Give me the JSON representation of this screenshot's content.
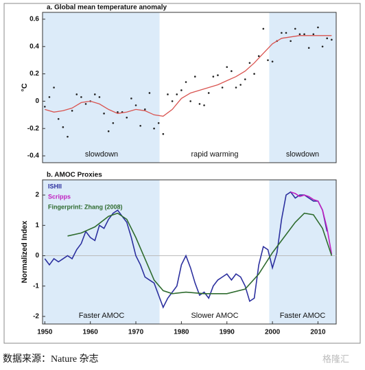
{
  "chart_data": [
    {
      "type": "line",
      "title": "a. Global mean temperature anomaly",
      "y_label": "°C",
      "xlim": [
        1949.5,
        2014
      ],
      "ylim": [
        -0.45,
        0.65
      ],
      "yticks": [
        -0.4,
        -0.2,
        0,
        0.2,
        0.4,
        0.6
      ],
      "shaded": [
        [
          1949.5,
          1975.2
        ],
        [
          1999.3,
          2014
        ]
      ],
      "shade_color": "#dcebf9",
      "annotations": [
        "slowdown",
        "rapid warming",
        "slowdown"
      ],
      "series": [
        {
          "color": "#222222",
          "markers": true,
          "x": [
            1950,
            1951,
            1952,
            1953,
            1954,
            1955,
            1956,
            1957,
            1958,
            1959,
            1960,
            1961,
            1962,
            1963,
            1964,
            1965,
            1966,
            1967,
            1968,
            1969,
            1970,
            1971,
            1972,
            1973,
            1974,
            1975,
            1976,
            1977,
            1978,
            1979,
            1980,
            1981,
            1982,
            1983,
            1984,
            1985,
            1986,
            1987,
            1988,
            1989,
            1990,
            1991,
            1992,
            1993,
            1994,
            1995,
            1996,
            1997,
            1998,
            1999,
            2000,
            2001,
            2002,
            2003,
            2004,
            2005,
            2006,
            2007,
            2008,
            2009,
            2010,
            2011,
            2012,
            2013
          ],
          "values": [
            -0.04,
            0.03,
            0.1,
            -0.13,
            -0.19,
            -0.26,
            -0.07,
            0.05,
            0.03,
            -0.02,
            0.0,
            0.05,
            0.03,
            -0.09,
            -0.22,
            -0.16,
            -0.08,
            -0.08,
            -0.12,
            0.02,
            -0.03,
            -0.18,
            -0.06,
            0.06,
            -0.2,
            -0.16,
            -0.24,
            0.05,
            0.0,
            0.05,
            0.08,
            0.14,
            0.0,
            0.18,
            -0.02,
            -0.03,
            0.06,
            0.18,
            0.19,
            0.1,
            0.25,
            0.22,
            0.1,
            0.12,
            0.16,
            0.28,
            0.2,
            0.33,
            0.53,
            0.3,
            0.29,
            0.44,
            0.5,
            0.5,
            0.44,
            0.53,
            0.49,
            0.49,
            0.39,
            0.49,
            0.54,
            0.4,
            0.46,
            0.45
          ]
        },
        {
          "color": "#d9534f",
          "markers": false,
          "x": [
            1950,
            1952,
            1954,
            1956,
            1958,
            1960,
            1962,
            1964,
            1966,
            1968,
            1970,
            1972,
            1974,
            1976,
            1978,
            1980,
            1982,
            1984,
            1986,
            1988,
            1990,
            1992,
            1994,
            1996,
            1998,
            2000,
            2002,
            2004,
            2006,
            2008,
            2010,
            2012,
            2013
          ],
          "values": [
            -0.06,
            -0.08,
            -0.07,
            -0.05,
            -0.01,
            0.0,
            -0.02,
            -0.06,
            -0.09,
            -0.08,
            -0.06,
            -0.07,
            -0.1,
            -0.11,
            -0.06,
            0.02,
            0.06,
            0.08,
            0.1,
            0.12,
            0.15,
            0.18,
            0.22,
            0.28,
            0.35,
            0.42,
            0.46,
            0.47,
            0.48,
            0.48,
            0.48,
            0.48,
            0.48
          ]
        }
      ]
    },
    {
      "type": "line",
      "title": "b. AMOC Proxies",
      "y_label": "Normalized Index",
      "xlim": [
        1949.5,
        2014
      ],
      "ylim": [
        -2.25,
        2.5
      ],
      "yticks": [
        -2,
        -1,
        0,
        1,
        2
      ],
      "xticks": [
        1950,
        1960,
        1970,
        1980,
        1990,
        2000,
        2010
      ],
      "zero_line": true,
      "shaded": [
        [
          1949.5,
          1975.2
        ],
        [
          1999.3,
          2014
        ]
      ],
      "shade_color": "#dcebf9",
      "annotations": [
        "Faster AMOC",
        "Slower AMOC",
        "Faster AMOC"
      ],
      "series": [
        {
          "name": "ISHII",
          "color": "#2b2f9e",
          "x": [
            1950,
            1951,
            1952,
            1953,
            1954,
            1955,
            1956,
            1957,
            1958,
            1959,
            1960,
            1961,
            1962,
            1963,
            1964,
            1965,
            1966,
            1967,
            1968,
            1969,
            1970,
            1971,
            1972,
            1973,
            1974,
            1975,
            1976,
            1977,
            1978,
            1979,
            1980,
            1981,
            1982,
            1983,
            1984,
            1985,
            1986,
            1987,
            1988,
            1989,
            1990,
            1991,
            1992,
            1993,
            1994,
            1995,
            1996,
            1997,
            1998,
            1999,
            2000,
            2001,
            2002,
            2003,
            2004,
            2005,
            2006,
            2007,
            2008,
            2009,
            2010,
            2011,
            2012
          ],
          "values": [
            -0.1,
            -0.3,
            -0.1,
            -0.2,
            -0.1,
            0.0,
            -0.1,
            0.2,
            0.4,
            0.8,
            0.6,
            0.5,
            1.0,
            0.9,
            1.2,
            1.4,
            1.5,
            1.3,
            1.1,
            0.6,
            0.0,
            -0.3,
            -0.7,
            -0.8,
            -0.9,
            -1.3,
            -1.7,
            -1.4,
            -1.2,
            -1.0,
            -0.3,
            0.0,
            -0.4,
            -0.9,
            -1.3,
            -1.2,
            -1.4,
            -1.0,
            -0.8,
            -0.7,
            -0.6,
            -0.8,
            -0.6,
            -0.7,
            -1.0,
            -1.5,
            -1.4,
            -0.3,
            0.3,
            0.2,
            -0.4,
            0.1,
            1.2,
            2.0,
            2.1,
            1.9,
            2.0,
            2.0,
            1.9,
            1.8,
            1.8,
            1.5,
            0.8
          ]
        },
        {
          "name": "Scripps",
          "color": "#c020c0",
          "x": [
            2004,
            2005,
            2006,
            2007,
            2008,
            2009,
            2010,
            2011,
            2012,
            2013
          ],
          "values": [
            2.1,
            2.05,
            1.95,
            2.0,
            1.95,
            1.85,
            1.8,
            1.5,
            0.9,
            0.05
          ]
        },
        {
          "name": "Fingerprint: Zhang (2008)",
          "color": "#2e6b2e",
          "x": [
            1955,
            1958,
            1961,
            1964,
            1966,
            1968,
            1970,
            1972,
            1974,
            1976,
            1978,
            1981,
            1985,
            1990,
            1994,
            1997,
            2000,
            2003,
            2005,
            2007,
            2009,
            2011,
            2013
          ],
          "values": [
            0.65,
            0.75,
            0.95,
            1.3,
            1.4,
            1.2,
            0.6,
            -0.1,
            -0.8,
            -1.15,
            -1.25,
            -1.2,
            -1.25,
            -1.25,
            -1.1,
            -0.6,
            0.1,
            0.7,
            1.1,
            1.4,
            1.35,
            0.9,
            0.0
          ]
        }
      ]
    }
  ],
  "footer": "数据来源：Nature 杂志",
  "watermark": "格隆汇"
}
